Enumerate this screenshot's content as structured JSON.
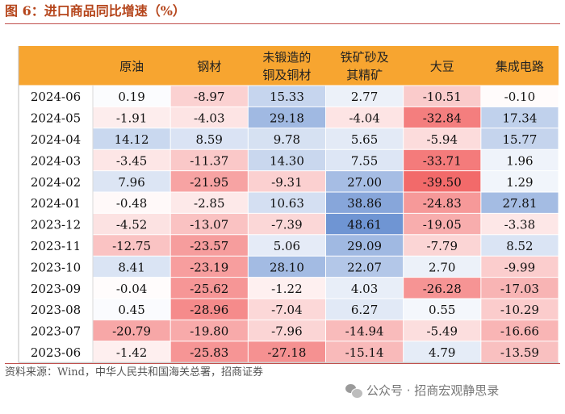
{
  "figure": {
    "title": "图 6：进口商品同比增速（%）",
    "source": "资料来源：Wind，中华人民共和国海关总署，招商证券",
    "watermark": "公众号 · 招商宏观静思录"
  },
  "colors": {
    "header_bg": "#f7a530",
    "title": "#b5451b",
    "rule": "#c0504d",
    "positive_max": "#6f95d3",
    "negative_max": "#f26a6a",
    "neutral": "#ffffff"
  },
  "chart_data": {
    "type": "table",
    "title": "图 6：进口商品同比增速（%）",
    "columns": [
      {
        "label": "原油",
        "lines": [
          "原油"
        ]
      },
      {
        "label": "钢材",
        "lines": [
          "钢材"
        ]
      },
      {
        "label": "未锻造的铜及铜材",
        "lines": [
          "未锻造的",
          "铜及铜材"
        ]
      },
      {
        "label": "铁矿砂及其精矿",
        "lines": [
          "铁矿砂及",
          "其精矿"
        ]
      },
      {
        "label": "大豆",
        "lines": [
          "大豆"
        ]
      },
      {
        "label": "集成电路",
        "lines": [
          "集成电路"
        ]
      }
    ],
    "rows": [
      {
        "date": "2024-06",
        "values": [
          0.19,
          -8.97,
          15.33,
          2.77,
          -10.51,
          -0.1
        ],
        "labels": [
          "0.19",
          "-8.97",
          "15.33",
          "2.77",
          "-10.51",
          "-0.10"
        ]
      },
      {
        "date": "2024-05",
        "values": [
          -1.91,
          -4.03,
          29.18,
          -4.04,
          -32.84,
          17.34
        ],
        "labels": [
          "-1.91",
          "-4.03",
          "29.18",
          "-4.04",
          "-32.84",
          "17.34"
        ]
      },
      {
        "date": "2024-04",
        "values": [
          14.12,
          8.59,
          9.78,
          5.65,
          -5.94,
          15.77
        ],
        "labels": [
          "14.12",
          "8.59",
          "9.78",
          "5.65",
          "-5.94",
          "15.77"
        ]
      },
      {
        "date": "2024-03",
        "values": [
          -3.45,
          -11.37,
          14.3,
          7.55,
          -33.71,
          1.96
        ],
        "labels": [
          "-3.45",
          "-11.37",
          "14.30",
          "7.55",
          "-33.71",
          "1.96"
        ]
      },
      {
        "date": "2024-02",
        "values": [
          7.96,
          -21.95,
          -9.31,
          27.0,
          -39.5,
          1.29
        ],
        "labels": [
          "7.96",
          "-21.95",
          "-9.31",
          "27.00",
          "-39.50",
          "1.29"
        ]
      },
      {
        "date": "2024-01",
        "values": [
          -0.48,
          -2.85,
          10.63,
          38.86,
          -24.83,
          27.81
        ],
        "labels": [
          "-0.48",
          "-2.85",
          "10.63",
          "38.86",
          "-24.83",
          "27.81"
        ]
      },
      {
        "date": "2023-12",
        "values": [
          -4.52,
          -13.07,
          -7.39,
          48.61,
          -19.05,
          -3.38
        ],
        "labels": [
          "-4.52",
          "-13.07",
          "-7.39",
          "48.61",
          "-19.05",
          "-3.38"
        ]
      },
      {
        "date": "2023-11",
        "values": [
          -12.75,
          -23.57,
          5.06,
          29.09,
          -7.79,
          8.52
        ],
        "labels": [
          "-12.75",
          "-23.57",
          "5.06",
          "29.09",
          "-7.79",
          "8.52"
        ]
      },
      {
        "date": "2023-10",
        "values": [
          8.41,
          -23.19,
          28.1,
          22.07,
          2.7,
          -9.99
        ],
        "labels": [
          "8.41",
          "-23.19",
          "28.10",
          "22.07",
          "2.70",
          "-9.99"
        ]
      },
      {
        "date": "2023-09",
        "values": [
          -0.04,
          -25.62,
          -1.22,
          4.03,
          -26.28,
          -17.03
        ],
        "labels": [
          "-0.04",
          "-25.62",
          "-1.22",
          "4.03",
          "-26.28",
          "-17.03"
        ]
      },
      {
        "date": "2023-08",
        "values": [
          0.45,
          -28.96,
          -7.04,
          6.27,
          0.55,
          -10.29
        ],
        "labels": [
          "0.45",
          "-28.96",
          "-7.04",
          "6.27",
          "0.55",
          "-10.29"
        ]
      },
      {
        "date": "2023-07",
        "values": [
          -20.79,
          -19.8,
          -7.96,
          -14.94,
          -5.49,
          -16.66
        ],
        "labels": [
          "-20.79",
          "-19.80",
          "-7.96",
          "-14.94",
          "-5.49",
          "-16.66"
        ]
      },
      {
        "date": "2023-06",
        "values": [
          -1.42,
          -25.83,
          -27.18,
          -15.14,
          4.79,
          -13.59
        ],
        "labels": [
          "-1.42",
          "-25.83",
          "-27.18",
          "-15.14",
          "4.79",
          "-13.59"
        ]
      }
    ]
  }
}
